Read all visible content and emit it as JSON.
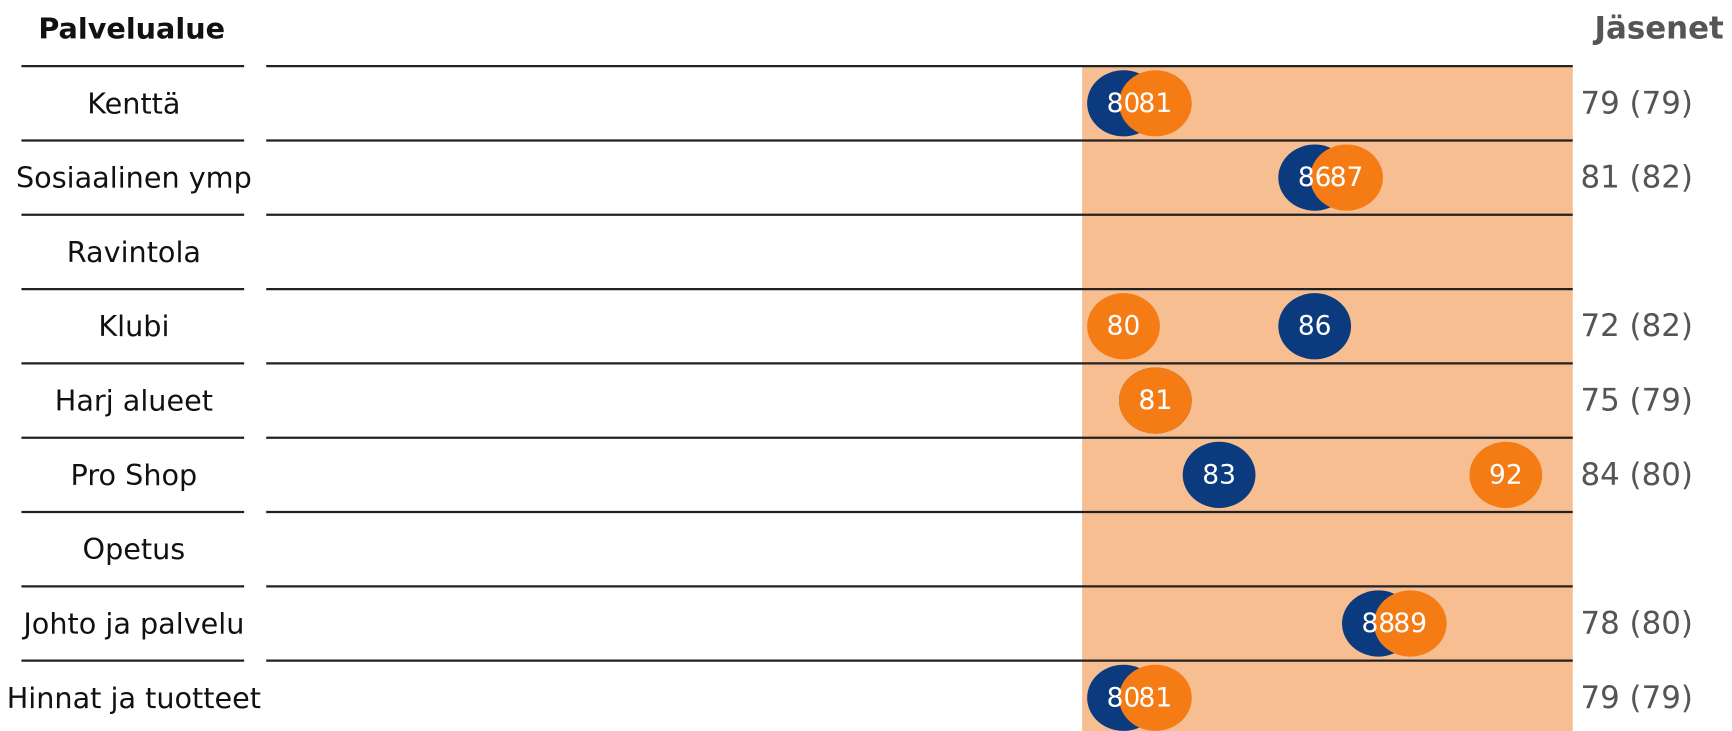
{
  "chart_data": {
    "type": "dot",
    "category_header": "Palvelualue",
    "members_header": "Jäsenet",
    "categories": [
      "Kenttä",
      "Sosiaalinen ymp",
      "Ravintola",
      "Klubi",
      "Harj alueet",
      "Pro Shop",
      "Opetus",
      "Johto ja palvelu",
      "Hinnat ja tuotteet"
    ],
    "series": [
      {
        "color": "#0b3a7e",
        "values": [
          80,
          86,
          null,
          86,
          81,
          83,
          null,
          88,
          80
        ]
      },
      {
        "color": "#f57c14",
        "values": [
          81,
          87,
          null,
          80,
          81,
          92,
          null,
          89,
          81
        ]
      }
    ],
    "members": [
      "79 (79)",
      "81 (82)",
      null,
      "72 (82)",
      "75 (79)",
      "84 (80)",
      null,
      "78 (80)",
      "79 (79)"
    ],
    "xlim": [
      78.7,
      94.1
    ],
    "band_color": "#f7bf91"
  }
}
